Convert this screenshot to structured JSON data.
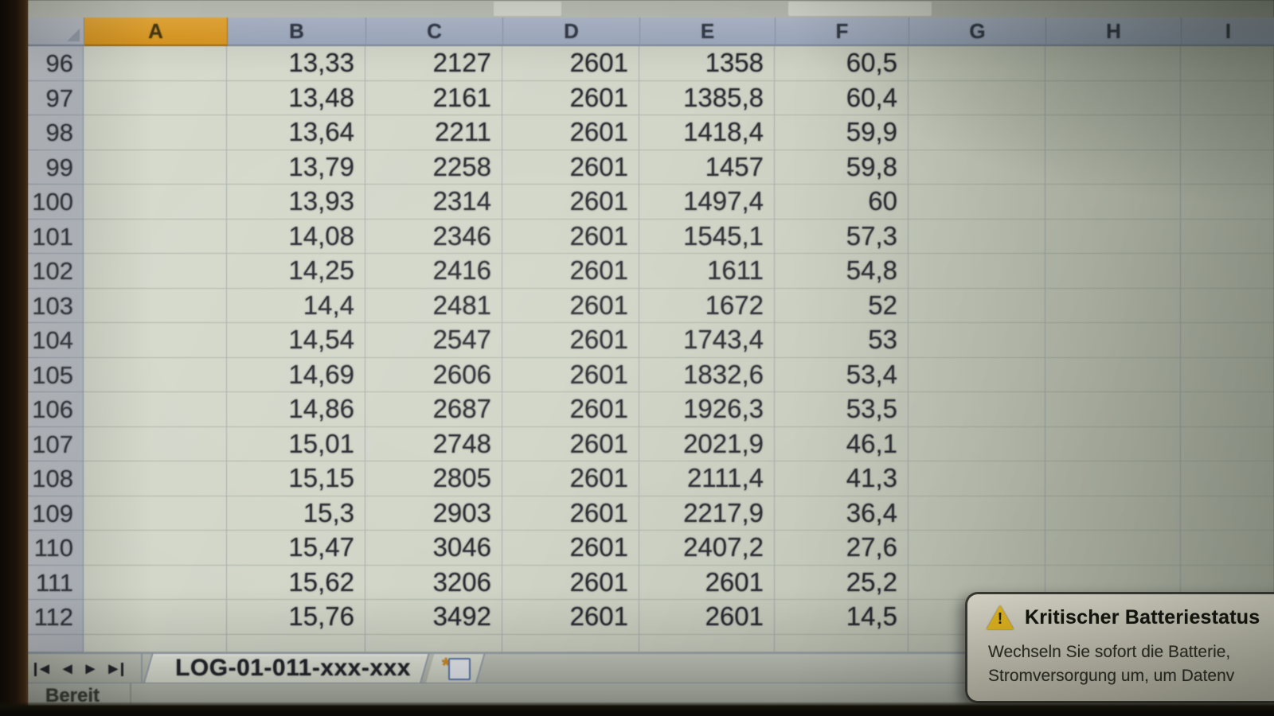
{
  "spreadsheet": {
    "columns": [
      "A",
      "B",
      "C",
      "D",
      "E",
      "F",
      "G",
      "H",
      "I"
    ],
    "selected_column": "A",
    "rows": [
      {
        "n": "96",
        "cells": {
          "B": "13,33",
          "C": "2127",
          "D": "2601",
          "E": "1358",
          "F": "60,5"
        }
      },
      {
        "n": "97",
        "cells": {
          "B": "13,48",
          "C": "2161",
          "D": "2601",
          "E": "1385,8",
          "F": "60,4"
        }
      },
      {
        "n": "98",
        "cells": {
          "B": "13,64",
          "C": "2211",
          "D": "2601",
          "E": "1418,4",
          "F": "59,9"
        }
      },
      {
        "n": "99",
        "cells": {
          "B": "13,79",
          "C": "2258",
          "D": "2601",
          "E": "1457",
          "F": "59,8"
        }
      },
      {
        "n": "100",
        "cells": {
          "B": "13,93",
          "C": "2314",
          "D": "2601",
          "E": "1497,4",
          "F": "60"
        }
      },
      {
        "n": "101",
        "cells": {
          "B": "14,08",
          "C": "2346",
          "D": "2601",
          "E": "1545,1",
          "F": "57,3"
        }
      },
      {
        "n": "102",
        "cells": {
          "B": "14,25",
          "C": "2416",
          "D": "2601",
          "E": "1611",
          "F": "54,8"
        }
      },
      {
        "n": "103",
        "cells": {
          "B": "14,4",
          "C": "2481",
          "D": "2601",
          "E": "1672",
          "F": "52"
        }
      },
      {
        "n": "104",
        "cells": {
          "B": "14,54",
          "C": "2547",
          "D": "2601",
          "E": "1743,4",
          "F": "53"
        }
      },
      {
        "n": "105",
        "cells": {
          "B": "14,69",
          "C": "2606",
          "D": "2601",
          "E": "1832,6",
          "F": "53,4"
        }
      },
      {
        "n": "106",
        "cells": {
          "B": "14,86",
          "C": "2687",
          "D": "2601",
          "E": "1926,3",
          "F": "53,5"
        }
      },
      {
        "n": "107",
        "cells": {
          "B": "15,01",
          "C": "2748",
          "D": "2601",
          "E": "2021,9",
          "F": "46,1"
        }
      },
      {
        "n": "108",
        "cells": {
          "B": "15,15",
          "C": "2805",
          "D": "2601",
          "E": "2111,4",
          "F": "41,3"
        }
      },
      {
        "n": "109",
        "cells": {
          "B": "15,3",
          "C": "2903",
          "D": "2601",
          "E": "2217,9",
          "F": "36,4"
        }
      },
      {
        "n": "110",
        "cells": {
          "B": "15,47",
          "C": "3046",
          "D": "2601",
          "E": "2407,2",
          "F": "27,6"
        }
      },
      {
        "n": "111",
        "cells": {
          "B": "15,62",
          "C": "3206",
          "D": "2601",
          "E": "2601",
          "F": "25,2"
        }
      },
      {
        "n": "112",
        "cells": {
          "B": "15,76",
          "C": "3492",
          "D": "2601",
          "E": "2601",
          "F": "14,5"
        }
      }
    ]
  },
  "sheet_tabs": {
    "nav_icons": [
      "first-sheet-icon",
      "previous-sheet-icon",
      "next-sheet-icon",
      "last-sheet-icon"
    ],
    "active_tab": "LOG-01-011-xxx-xxx",
    "insert_tab_icon": "insert-worksheet-icon"
  },
  "status_bar": {
    "label": "Bereit"
  },
  "notification": {
    "icon": "warning-triangle-icon",
    "title": "Kritischer Batteriestatus",
    "line1": "Wechseln Sie sofort die Batterie,",
    "line2": "Stromversorgung um, um Datenv"
  },
  "colors": {
    "selected_column_header": "#e8a32c",
    "column_header": "#a8b2c6",
    "cell_background": "#ced3c6",
    "warning_yellow": "#f2c21d",
    "popup_background": "#dcd9c9"
  }
}
